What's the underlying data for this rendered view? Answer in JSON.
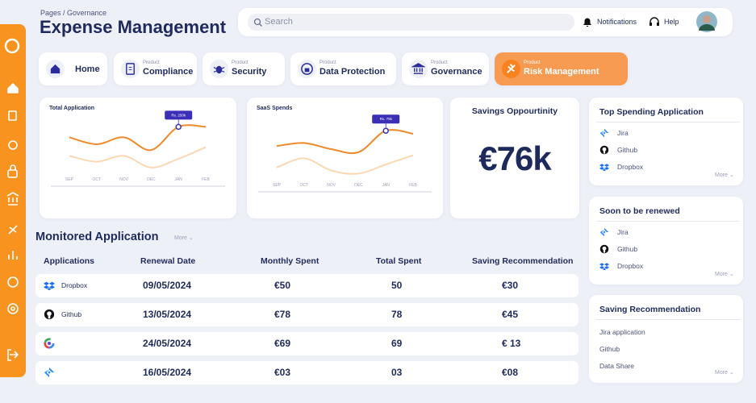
{
  "header": {
    "breadcrumb": "Pages / Governance",
    "title": "Expense Management",
    "search_placeholder": "Search",
    "notifications": "Notifications",
    "help": "Help"
  },
  "tabs": [
    {
      "label": "Home",
      "icon": "home"
    },
    {
      "caption": "Product",
      "label": "Compliance",
      "icon": "doc"
    },
    {
      "caption": "Product",
      "label": "Security",
      "icon": "bug"
    },
    {
      "caption": "Product",
      "label": "Data Protection",
      "icon": "lock"
    },
    {
      "caption": "Product",
      "label": "Governance",
      "icon": "bank"
    },
    {
      "caption": "Product",
      "label": "Risk Management",
      "icon": "risk",
      "active": true
    }
  ],
  "charts": [
    {
      "title": "Total Application",
      "categories": [
        "SEP",
        "OCT",
        "NOV",
        "DEC",
        "JAN",
        "FEB"
      ],
      "series": [
        {
          "color": "#ef8a2a",
          "values": [
            62,
            50,
            62,
            40,
            80,
            80
          ]
        },
        {
          "color": "#fbd8b4",
          "values": [
            30,
            20,
            30,
            10,
            25,
            45
          ]
        }
      ],
      "tooltip": "Rs. 250k",
      "tooltip_index": 4
    },
    {
      "title": "SaaS Spends",
      "categories": [
        "SEP",
        "OCT",
        "NOV",
        "DEC",
        "JAN",
        "FEB"
      ],
      "series": [
        {
          "color": "#ef8a2a",
          "values": [
            55,
            60,
            50,
            45,
            80,
            75
          ]
        },
        {
          "color": "#fbd8b4",
          "values": [
            20,
            35,
            15,
            10,
            25,
            40
          ]
        }
      ],
      "tooltip": "Rs. 75k",
      "tooltip_index": 4
    }
  ],
  "savings": {
    "title": "Savings Oppourtinity",
    "value": "€76k"
  },
  "monitored": {
    "title": "Monitored Application",
    "more": "More",
    "columns": [
      "Applications",
      "Renewal Date",
      "Monthly Spent",
      "Total Spent",
      "Saving Recommendation"
    ],
    "rows": [
      {
        "icon": "dropbox",
        "app": "Dropbox",
        "renewal": "09/05/2024",
        "monthly": "€50",
        "total": "50",
        "saving": "€30"
      },
      {
        "icon": "github",
        "app": "Github",
        "renewal": "13/05/2024",
        "monthly": "€78",
        "total": "78",
        "saving": "€45"
      },
      {
        "icon": "google",
        "renewal": "24/05/2024",
        "monthly": "€69",
        "total": "69",
        "saving": "€ 13"
      },
      {
        "icon": "jira",
        "renewal": "16/05/2024",
        "monthly": "€03",
        "total": "03",
        "saving": "€08"
      }
    ]
  },
  "side_cards": [
    {
      "title": "Top Spending Application",
      "items": [
        {
          "icon": "jira",
          "label": "Jira"
        },
        {
          "icon": "github",
          "label": "Github"
        },
        {
          "icon": "dropbox",
          "label": "Dropbox"
        }
      ],
      "more": "More"
    },
    {
      "title": "Soon to be renewed",
      "items": [
        {
          "icon": "jira",
          "label": "Jira"
        },
        {
          "icon": "github",
          "label": "Github"
        },
        {
          "icon": "dropbox",
          "label": "Dropbox"
        }
      ],
      "more": "More"
    },
    {
      "title": "Saving Recommendation",
      "items": [
        {
          "label": "Jira application"
        },
        {
          "label": "Github"
        },
        {
          "label": "Data Share"
        }
      ],
      "more": "More"
    }
  ]
}
